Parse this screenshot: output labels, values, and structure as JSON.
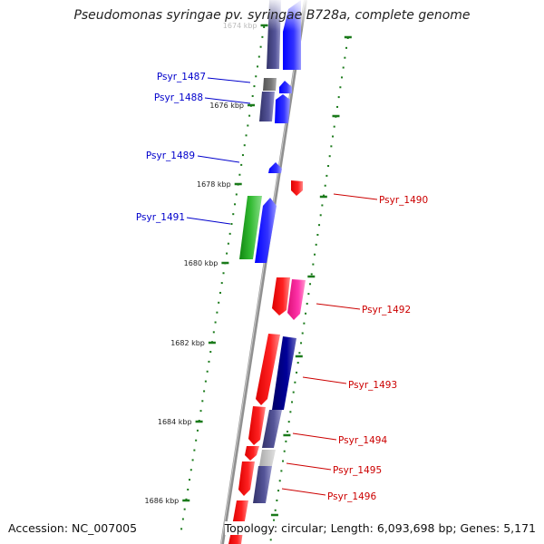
{
  "title": "Pseudomonas syringae pv. syringae B728a, complete genome",
  "accession": "Accession: NC_007005",
  "topology": "Topology: circular; Length: 6,093,698 bp; Genes: 5,171",
  "kbp_labels": [
    "1674 kbp",
    "1676 kbp",
    "1678 kbp",
    "1680 kbp",
    "1682 kbp",
    "1684 kbp",
    "1686 kbp"
  ],
  "colors": {
    "blue_label": "#0000cc",
    "red_label": "#cc0000",
    "tick": "#1a7a1a",
    "backbone": "#8a8a8a"
  },
  "gene_labels_left": [
    {
      "label": "Psyr_1487"
    },
    {
      "label": "Psyr_1488"
    },
    {
      "label": "Psyr_1489"
    },
    {
      "label": "Psyr_1491"
    }
  ],
  "gene_labels_right": [
    {
      "label": "Psyr_1490"
    },
    {
      "label": "Psyr_1492"
    },
    {
      "label": "Psyr_1493"
    },
    {
      "label": "Psyr_1494"
    },
    {
      "label": "Psyr_1495"
    },
    {
      "label": "Psyr_1496"
    }
  ]
}
